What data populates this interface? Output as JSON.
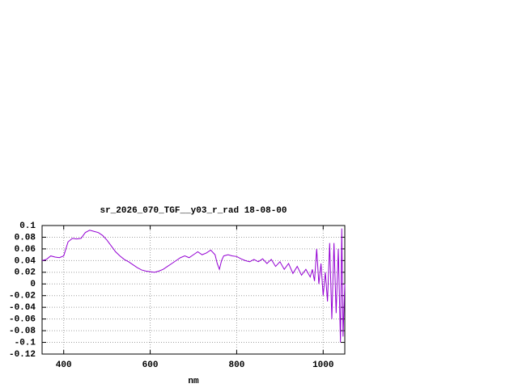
{
  "chart_data": {
    "type": "line",
    "title": "sr_2026_070_TGF__y03_r_rad 18-08-00",
    "xlabel": "nm",
    "xlim": [
      350,
      1050
    ],
    "xticks": [
      400,
      600,
      800,
      1000
    ],
    "ylim": [
      -0.12,
      0.1
    ],
    "yticks": [
      0.1,
      0.08,
      0.06,
      0.04,
      0.02,
      0,
      -0.02,
      -0.04,
      -0.06,
      -0.08,
      -0.1,
      -0.12
    ],
    "grid": true,
    "x": [
      350,
      360,
      370,
      380,
      390,
      400,
      410,
      420,
      430,
      440,
      450,
      460,
      470,
      480,
      490,
      500,
      510,
      520,
      530,
      540,
      550,
      560,
      570,
      580,
      590,
      600,
      610,
      620,
      630,
      640,
      650,
      660,
      670,
      680,
      690,
      700,
      710,
      720,
      730,
      740,
      750,
      755,
      760,
      765,
      770,
      780,
      790,
      800,
      810,
      820,
      830,
      840,
      850,
      860,
      870,
      880,
      890,
      900,
      910,
      920,
      930,
      940,
      950,
      960,
      970,
      975,
      980,
      985,
      990,
      995,
      1000,
      1005,
      1010,
      1015,
      1020,
      1025,
      1030,
      1035,
      1040,
      1043,
      1046,
      1050
    ],
    "series": [
      {
        "name": "sr_2026_070_TGF__y03_r_rad",
        "color": "#9400d3",
        "values": [
          0.04,
          0.042,
          0.048,
          0.046,
          0.045,
          0.048,
          0.072,
          0.078,
          0.077,
          0.078,
          0.088,
          0.092,
          0.09,
          0.088,
          0.083,
          0.075,
          0.065,
          0.055,
          0.048,
          0.042,
          0.038,
          0.033,
          0.028,
          0.024,
          0.022,
          0.021,
          0.02,
          0.022,
          0.025,
          0.03,
          0.035,
          0.04,
          0.045,
          0.048,
          0.045,
          0.05,
          0.055,
          0.05,
          0.053,
          0.058,
          0.05,
          0.035,
          0.025,
          0.04,
          0.048,
          0.05,
          0.048,
          0.047,
          0.043,
          0.04,
          0.038,
          0.042,
          0.038,
          0.043,
          0.035,
          0.042,
          0.03,
          0.038,
          0.025,
          0.035,
          0.018,
          0.03,
          0.015,
          0.025,
          0.012,
          0.025,
          0.005,
          0.06,
          0.0,
          0.035,
          -0.02,
          0.02,
          -0.03,
          0.07,
          -0.06,
          0.07,
          -0.05,
          0.06,
          -0.1,
          0.095,
          -0.09,
          0.0
        ]
      }
    ]
  }
}
